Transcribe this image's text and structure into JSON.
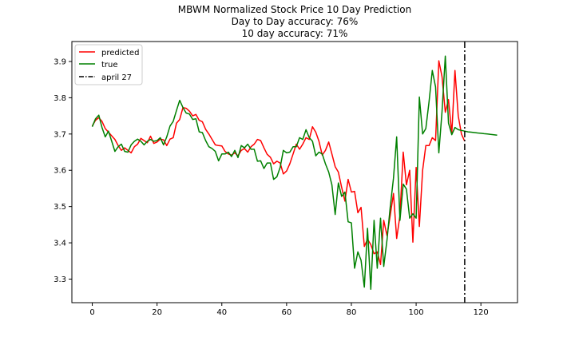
{
  "chart_data": {
    "type": "line",
    "title_lines": [
      "MBWM Normalized Stock Price 10 Day Prediction",
      "Day to Day accuracy: 76%",
      "10 day accuracy: 71%"
    ],
    "xlabel": "",
    "ylabel": "",
    "xlim": [
      -6.3,
      131.3
    ],
    "ylim": [
      3.235,
      3.955
    ],
    "xticks": [
      0,
      20,
      40,
      60,
      80,
      100,
      120
    ],
    "xtick_labels": [
      "0",
      "20",
      "40",
      "60",
      "80",
      "100",
      "120"
    ],
    "yticks": [
      3.3,
      3.4,
      3.5,
      3.6,
      3.7,
      3.8,
      3.9
    ],
    "ytick_labels": [
      "3.3",
      "3.4",
      "3.5",
      "3.6",
      "3.7",
      "3.8",
      "3.9"
    ],
    "grid": false,
    "legend_position": "top-left",
    "series": [
      {
        "name": "predicted",
        "color": "#ff0000",
        "style": "solid",
        "x": [
          0,
          1,
          2,
          3,
          4,
          5,
          6,
          7,
          8,
          9,
          10,
          11,
          12,
          13,
          14,
          15,
          16,
          17,
          18,
          19,
          20,
          21,
          22,
          23,
          24,
          25,
          26,
          27,
          28,
          29,
          30,
          31,
          32,
          33,
          34,
          35,
          36,
          37,
          38,
          39,
          40,
          41,
          42,
          43,
          44,
          45,
          46,
          47,
          48,
          49,
          50,
          51,
          52,
          53,
          54,
          55,
          56,
          57,
          58,
          59,
          60,
          61,
          62,
          63,
          64,
          65,
          66,
          67,
          68,
          69,
          70,
          71,
          72,
          73,
          74,
          75,
          76,
          77,
          78,
          79,
          80,
          81,
          82,
          83,
          84,
          85,
          86,
          87,
          88,
          89,
          90,
          91,
          92,
          93,
          94,
          95,
          96,
          97,
          98,
          99,
          100,
          101,
          102,
          103,
          104,
          105,
          106,
          107,
          108,
          109,
          110,
          111,
          112,
          113,
          114,
          115
        ],
        "values": [
          3.722,
          3.738,
          3.745,
          3.735,
          3.715,
          3.705,
          3.695,
          3.685,
          3.668,
          3.655,
          3.662,
          3.655,
          3.648,
          3.665,
          3.672,
          3.688,
          3.682,
          3.676,
          3.694,
          3.674,
          3.678,
          3.686,
          3.684,
          3.668,
          3.686,
          3.69,
          3.73,
          3.74,
          3.773,
          3.771,
          3.763,
          3.75,
          3.754,
          3.738,
          3.734,
          3.713,
          3.7,
          3.685,
          3.67,
          3.668,
          3.667,
          3.652,
          3.645,
          3.642,
          3.648,
          3.64,
          3.655,
          3.66,
          3.65,
          3.665,
          3.672,
          3.685,
          3.682,
          3.662,
          3.644,
          3.636,
          3.618,
          3.625,
          3.62,
          3.59,
          3.598,
          3.618,
          3.645,
          3.672,
          3.658,
          3.672,
          3.69,
          3.685,
          3.72,
          3.705,
          3.68,
          3.642,
          3.655,
          3.678,
          3.645,
          3.61,
          3.595,
          3.553,
          3.515,
          3.575,
          3.54,
          3.542,
          3.483,
          3.498,
          3.39,
          3.41,
          3.395,
          3.37,
          3.375,
          3.34,
          3.462,
          3.42,
          3.475,
          3.536,
          3.412,
          3.475,
          3.65,
          3.56,
          3.6,
          3.402,
          3.608,
          3.445,
          3.6,
          3.668,
          3.668,
          3.69,
          3.682,
          3.902,
          3.858,
          3.76,
          3.795,
          3.7,
          3.875,
          3.75,
          3.7,
          3.68
        ]
      },
      {
        "name": "true",
        "color": "#008000",
        "style": "solid",
        "x": [
          0,
          1,
          2,
          3,
          4,
          5,
          6,
          7,
          8,
          9,
          10,
          11,
          12,
          13,
          14,
          15,
          16,
          17,
          18,
          19,
          20,
          21,
          22,
          23,
          24,
          25,
          26,
          27,
          28,
          29,
          30,
          31,
          32,
          33,
          34,
          35,
          36,
          37,
          38,
          39,
          40,
          41,
          42,
          43,
          44,
          45,
          46,
          47,
          48,
          49,
          50,
          51,
          52,
          53,
          54,
          55,
          56,
          57,
          58,
          59,
          60,
          61,
          62,
          63,
          64,
          65,
          66,
          67,
          68,
          69,
          70,
          71,
          72,
          73,
          74,
          75,
          76,
          77,
          78,
          79,
          80,
          81,
          82,
          83,
          84,
          85,
          86,
          87,
          88,
          89,
          90,
          91,
          92,
          93,
          94,
          95,
          96,
          97,
          98,
          99,
          100,
          101,
          102,
          103,
          104,
          105,
          106,
          107,
          108,
          109,
          110,
          111,
          112,
          113,
          114,
          115,
          116,
          117,
          118,
          119,
          120,
          121,
          122,
          123,
          124,
          125
        ],
        "values": [
          3.72,
          3.742,
          3.752,
          3.718,
          3.692,
          3.708,
          3.68,
          3.652,
          3.665,
          3.672,
          3.652,
          3.65,
          3.67,
          3.68,
          3.686,
          3.68,
          3.67,
          3.68,
          3.685,
          3.68,
          3.682,
          3.69,
          3.67,
          3.692,
          3.722,
          3.735,
          3.765,
          3.793,
          3.773,
          3.758,
          3.755,
          3.74,
          3.742,
          3.706,
          3.704,
          3.682,
          3.665,
          3.66,
          3.652,
          3.626,
          3.645,
          3.645,
          3.65,
          3.638,
          3.655,
          3.635,
          3.668,
          3.662,
          3.672,
          3.658,
          3.658,
          3.625,
          3.626,
          3.605,
          3.62,
          3.62,
          3.575,
          3.582,
          3.608,
          3.655,
          3.648,
          3.65,
          3.665,
          3.665,
          3.69,
          3.685,
          3.712,
          3.69,
          3.68,
          3.64,
          3.65,
          3.645,
          3.618,
          3.595,
          3.56,
          3.478,
          3.565,
          3.528,
          3.54,
          3.458,
          3.455,
          3.33,
          3.375,
          3.352,
          3.278,
          3.44,
          3.272,
          3.462,
          3.33,
          3.468,
          3.335,
          3.408,
          3.498,
          3.578,
          3.692,
          3.462,
          3.562,
          3.548,
          3.468,
          3.48,
          3.468,
          3.802,
          3.7,
          3.715,
          3.79,
          3.875,
          3.83,
          3.648,
          3.762,
          3.915,
          3.73,
          3.698,
          3.718,
          3.712,
          3.71,
          3.708,
          3.706,
          3.705,
          3.704,
          3.703,
          3.702,
          3.701,
          3.7,
          3.699,
          3.698,
          3.697
        ]
      }
    ],
    "vline": {
      "name": "april 27",
      "x": 115,
      "color": "#000000",
      "style": "dashdot"
    }
  }
}
